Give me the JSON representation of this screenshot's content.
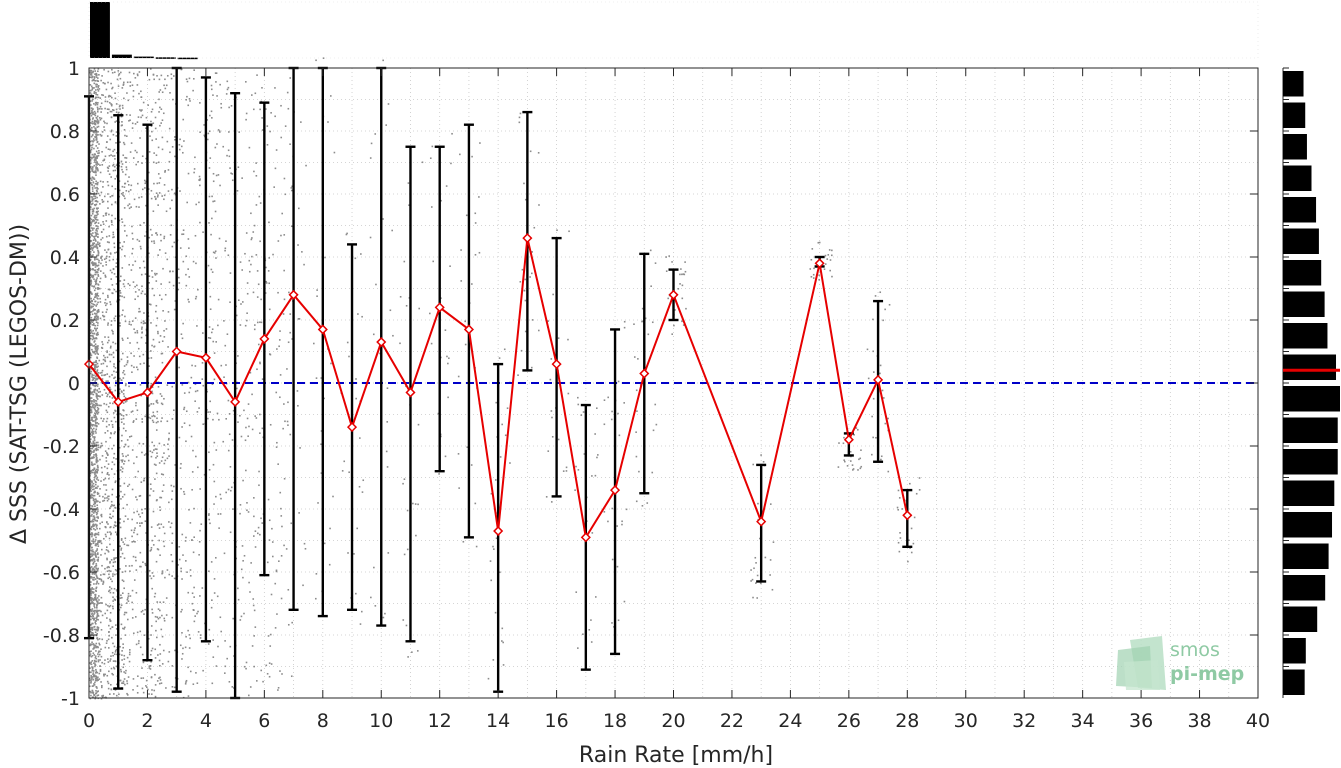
{
  "chart_data": {
    "type": "scatter",
    "xlabel": "Rain Rate [mm/h]",
    "ylabel": "Δ SSS (SAT-TSG (LEGOS-DM))",
    "xlim": [
      0,
      40
    ],
    "ylim": [
      -1,
      1
    ],
    "xticks": [
      "0",
      "2",
      "4",
      "6",
      "8",
      "10",
      "12",
      "14",
      "16",
      "18",
      "20",
      "22",
      "24",
      "26",
      "28",
      "30",
      "32",
      "34",
      "36",
      "38",
      "40"
    ],
    "yticks": [
      "-1",
      "-0.8",
      "-0.6",
      "-0.4",
      "-0.2",
      "0",
      "0.2",
      "0.4",
      "0.6",
      "0.8",
      "1"
    ],
    "grid": true,
    "reference_line": {
      "y": 0,
      "style": "dashed",
      "color": "#0000c8"
    },
    "bin_means": {
      "color": "#e60000",
      "x": [
        0,
        1,
        2,
        3,
        4,
        5,
        6,
        7,
        8,
        9,
        10,
        11,
        12,
        13,
        14,
        15,
        16,
        17,
        18,
        19,
        20,
        23,
        25,
        26,
        27,
        28
      ],
      "y": [
        0.06,
        -0.06,
        -0.03,
        0.1,
        0.08,
        -0.06,
        0.14,
        0.28,
        0.17,
        -0.14,
        0.13,
        -0.03,
        0.24,
        0.17,
        -0.47,
        0.46,
        0.06,
        -0.49,
        -0.34,
        0.03,
        0.28,
        -0.44,
        0.38,
        -0.18,
        0.01,
        -0.42
      ],
      "err_low": [
        -0.81,
        -0.97,
        -0.88,
        -0.98,
        -0.82,
        -1.0,
        -0.61,
        -0.72,
        -0.74,
        -0.72,
        -0.77,
        -0.82,
        -0.28,
        -0.49,
        -0.98,
        0.04,
        -0.36,
        -0.91,
        -0.86,
        -0.35,
        0.2,
        -0.63,
        0.37,
        -0.23,
        -0.25,
        -0.52
      ],
      "err_high": [
        0.91,
        0.85,
        0.82,
        1.0,
        0.97,
        0.92,
        0.89,
        1.0,
        1.0,
        0.44,
        1.0,
        0.75,
        0.75,
        0.82,
        0.06,
        0.86,
        0.46,
        -0.07,
        0.17,
        0.41,
        0.36,
        -0.26,
        0.4,
        -0.16,
        0.26,
        -0.34
      ]
    },
    "top_histogram": [
      1.0,
      0.06,
      0.025,
      0.012,
      0.006
    ],
    "right_histogram": {
      "bins": [
        0.95,
        0.85,
        0.75,
        0.65,
        0.55,
        0.45,
        0.35,
        0.25,
        0.15,
        0.05,
        -0.05,
        -0.15,
        -0.25,
        -0.35,
        -0.45,
        -0.55,
        -0.65,
        -0.75,
        -0.85,
        -0.95
      ],
      "counts": [
        0.36,
        0.39,
        0.42,
        0.5,
        0.58,
        0.63,
        0.67,
        0.73,
        0.78,
        0.93,
        1.0,
        0.96,
        0.96,
        0.9,
        0.86,
        0.8,
        0.74,
        0.6,
        0.4,
        0.38
      ],
      "median": 0.05,
      "median_color": "#e60000"
    }
  },
  "logo": {
    "line1": "smos",
    "line2": "pi-mep"
  }
}
